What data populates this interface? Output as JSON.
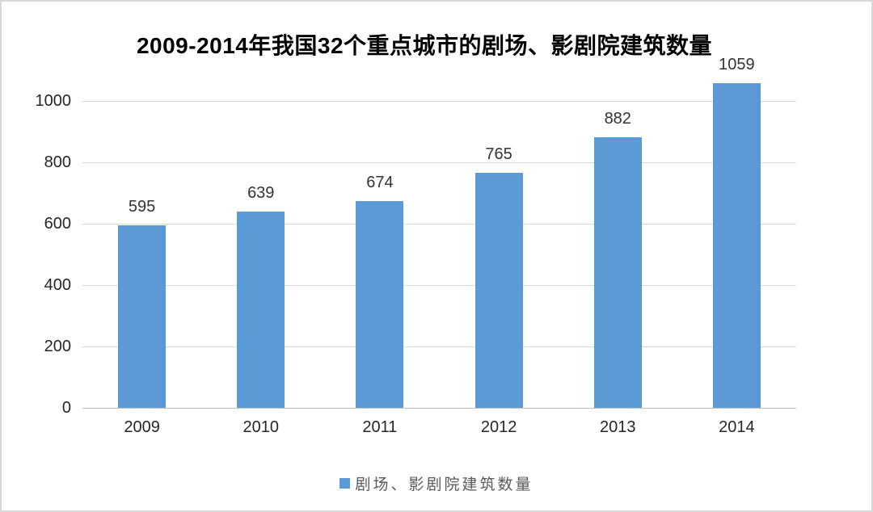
{
  "chart_data": {
    "type": "bar",
    "title": "2009-2014年我国32个重点城市的剧场、影剧院建筑数量",
    "categories": [
      "2009",
      "2010",
      "2011",
      "2012",
      "2013",
      "2014"
    ],
    "values": [
      595,
      639,
      674,
      765,
      882,
      1059
    ],
    "xlabel": "",
    "ylabel": "",
    "ylim": [
      0,
      1100
    ],
    "yticks": [
      0,
      200,
      400,
      600,
      800,
      1000
    ],
    "grid": true,
    "legend": "剧场、影剧院建筑数量",
    "legend_position": "bottom",
    "colors": {
      "bar": "#5B9BD5",
      "gridline": "#D9D9D9",
      "axis_line": "#BFBFBF",
      "title_text": "#000000",
      "tick_text": "#262626",
      "data_label_text": "#333333",
      "legend_text": "#595959",
      "background": "#FFFFFF",
      "frame_border": "#D9D9D9"
    }
  }
}
